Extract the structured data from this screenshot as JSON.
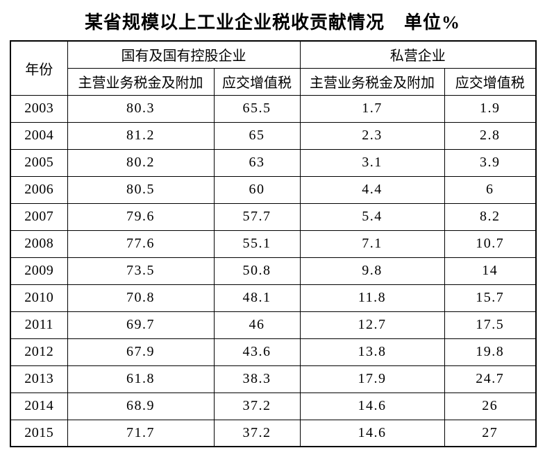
{
  "page": {
    "title": "某省规模以上工业企业税收贡献情况",
    "unit_label": "单位%"
  },
  "table": {
    "header": {
      "year": "年份",
      "group_state": "国有及国有控股企业",
      "group_private": "私营企业",
      "sub_state_tax": "主营业务税金及附加",
      "sub_state_vat": "应交增值税",
      "sub_private_tax": "主营业务税金及附加",
      "sub_private_vat": "应交增值税"
    },
    "rows": [
      [
        "2003",
        "80.3",
        "65.5",
        "1.7",
        "1.9"
      ],
      [
        "2004",
        "81.2",
        "65",
        "2.3",
        "2.8"
      ],
      [
        "2005",
        "80.2",
        "63",
        "3.1",
        "3.9"
      ],
      [
        "2006",
        "80.5",
        "60",
        "4.4",
        "6"
      ],
      [
        "2007",
        "79.6",
        "57.7",
        "5.4",
        "8.2"
      ],
      [
        "2008",
        "77.6",
        "55.1",
        "7.1",
        "10.7"
      ],
      [
        "2009",
        "73.5",
        "50.8",
        "9.8",
        "14"
      ],
      [
        "2010",
        "70.8",
        "48.1",
        "11.8",
        "15.7"
      ],
      [
        "2011",
        "69.7",
        "46",
        "12.7",
        "17.5"
      ],
      [
        "2012",
        "67.9",
        "43.6",
        "13.8",
        "19.8"
      ],
      [
        "2013",
        "61.8",
        "38.3",
        "17.9",
        "24.7"
      ],
      [
        "2014",
        "68.9",
        "37.2",
        "14.6",
        "26"
      ],
      [
        "2015",
        "71.7",
        "37.2",
        "14.6",
        "27"
      ]
    ]
  },
  "chart_data": {
    "type": "table",
    "title": "某省规模以上工业企业税收贡献情况 单位%",
    "categories": [
      2003,
      2004,
      2005,
      2006,
      2007,
      2008,
      2009,
      2010,
      2011,
      2012,
      2013,
      2014,
      2015
    ],
    "series": [
      {
        "name": "国有及国有控股企业-主营业务税金及附加",
        "values": [
          80.3,
          81.2,
          80.2,
          80.5,
          79.6,
          77.6,
          73.5,
          70.8,
          69.7,
          67.9,
          61.8,
          68.9,
          71.7
        ]
      },
      {
        "name": "国有及国有控股企业-应交增值税",
        "values": [
          65.5,
          65,
          63,
          60,
          57.7,
          55.1,
          50.8,
          48.1,
          46,
          43.6,
          38.3,
          37.2,
          37.2
        ]
      },
      {
        "name": "私营企业-主营业务税金及附加",
        "values": [
          1.7,
          2.3,
          3.1,
          4.4,
          5.4,
          7.1,
          9.8,
          11.8,
          12.7,
          13.8,
          17.9,
          14.6,
          14.6
        ]
      },
      {
        "name": "私营企业-应交增值税",
        "values": [
          1.9,
          2.8,
          3.9,
          6,
          8.2,
          10.7,
          14,
          15.7,
          17.5,
          19.8,
          24.7,
          26,
          27
        ]
      }
    ],
    "unit": "%"
  },
  "colors": {
    "background": "#ffffff",
    "border": "#000000",
    "text": "#000000"
  }
}
